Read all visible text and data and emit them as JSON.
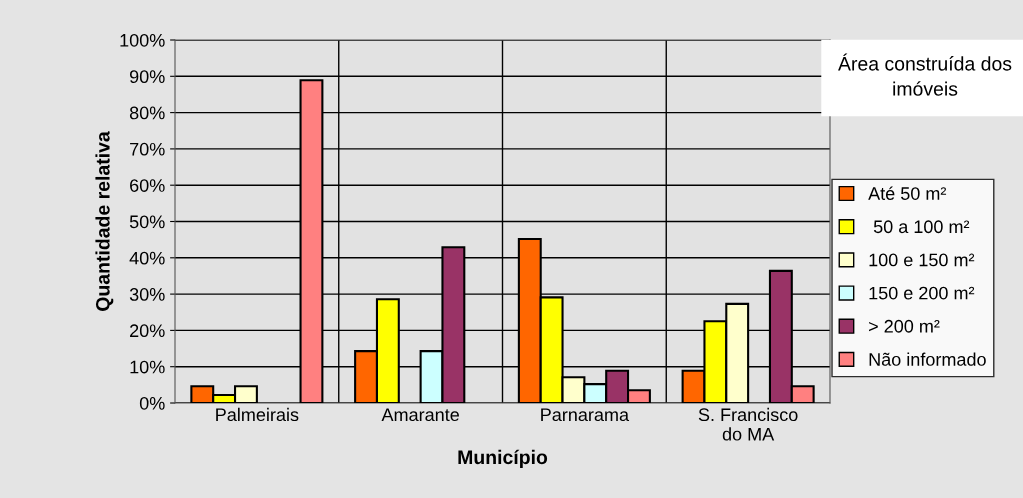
{
  "chart_data": {
    "type": "bar",
    "title": "Área construída dos imóveis",
    "xlabel": "Município",
    "ylabel": "Quantidade relativa",
    "categories": [
      "Palmeirais",
      "Amarante",
      "Parnarama",
      "S. Francisco\ndo MA"
    ],
    "series": [
      {
        "name": "Até 50 m²",
        "color": "#ff6600",
        "values": [
          4.6,
          14.3,
          45.2,
          8.9
        ]
      },
      {
        "name": " 50 a 100 m²",
        "color": "#ffff00",
        "values": [
          2.2,
          28.6,
          29.1,
          22.5
        ]
      },
      {
        "name": "100 e 150 m²",
        "color": "#ffffcc",
        "values": [
          4.6,
          null,
          7.1,
          27.3
        ]
      },
      {
        "name": "150 e 200 m²",
        "color": "#ccffff",
        "values": [
          null,
          14.3,
          5.2,
          null
        ]
      },
      {
        "name": "> 200 m²",
        "color": "#993366",
        "values": [
          null,
          42.9,
          8.9,
          36.4
        ]
      },
      {
        "name": "Não informado",
        "color": "#ff8080",
        "values": [
          88.9,
          null,
          3.5,
          4.6
        ]
      }
    ],
    "ylim": [
      0,
      100
    ],
    "yticks": [
      {
        "value": 0,
        "label": "0%"
      },
      {
        "value": 10,
        "label": "10%"
      },
      {
        "value": 20,
        "label": "20%"
      },
      {
        "value": 30,
        "label": "30%"
      },
      {
        "value": 40,
        "label": "40%"
      },
      {
        "value": 50,
        "label": "50%"
      },
      {
        "value": 60,
        "label": "60%"
      },
      {
        "value": 70,
        "label": "70%"
      },
      {
        "value": 80,
        "label": "80%"
      },
      {
        "value": 90,
        "label": "90%"
      },
      {
        "value": 100,
        "label": "100%"
      }
    ],
    "grid": true,
    "legend": "right"
  }
}
